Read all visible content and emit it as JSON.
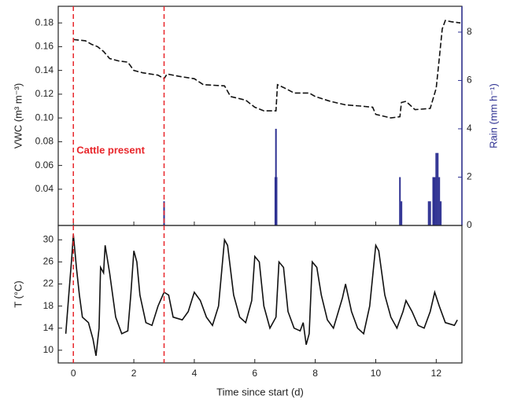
{
  "chart_data": [
    {
      "type": "line",
      "ylabel": "VWC (m³ m⁻³)",
      "y2label": "Rain (mm h⁻¹)",
      "xlim": [
        -0.5,
        12.85
      ],
      "xticks": [
        0,
        2,
        4,
        6,
        8,
        10,
        12
      ],
      "xtick_labels": false,
      "ylim": [
        0.0095,
        0.194
      ],
      "yticks": [
        0.04,
        0.06,
        0.08,
        {
          "value": 0.1,
          "label": "0.10"
        },
        0.12,
        0.14,
        0.16,
        0.18
      ],
      "y2lim": [
        0,
        9.07
      ],
      "y2ticks": [
        0,
        2,
        4,
        6,
        8
      ],
      "y2color": "#2e3192",
      "vlines": [
        0,
        3
      ],
      "vline_color": "#e8262b",
      "annotation": {
        "text": "Cattle present",
        "color": "#e8262b"
      },
      "series": [
        {
          "name": "VWC",
          "type": "line",
          "color": "#111111",
          "dash": true,
          "x": [
            0,
            0.4,
            0.6,
            0.8,
            1.0,
            1.2,
            1.5,
            1.8,
            2.0,
            2.3,
            2.8,
            3.0,
            3.1,
            3.5,
            4.0,
            4.3,
            5.0,
            5.2,
            5.7,
            6.0,
            6.3,
            6.7,
            6.75,
            7.0,
            7.3,
            7.8,
            8.0,
            8.5,
            9.0,
            9.5,
            9.9,
            10.0,
            10.5,
            10.8,
            10.85,
            11.0,
            11.3,
            11.8,
            12.0,
            12.1,
            12.2,
            12.3,
            12.5,
            12.8
          ],
          "values": [
            0.166,
            0.165,
            0.162,
            0.16,
            0.156,
            0.15,
            0.148,
            0.147,
            0.14,
            0.138,
            0.136,
            0.133,
            0.137,
            0.135,
            0.133,
            0.128,
            0.127,
            0.118,
            0.115,
            0.109,
            0.106,
            0.106,
            0.128,
            0.125,
            0.121,
            0.121,
            0.118,
            0.114,
            0.111,
            0.11,
            0.109,
            0.103,
            0.1,
            0.101,
            0.113,
            0.114,
            0.107,
            0.108,
            0.125,
            0.15,
            0.175,
            0.182,
            0.181,
            0.18
          ]
        },
        {
          "name": "Rain",
          "type": "bar",
          "axis": "y2",
          "color": "#2e3192",
          "x": [
            3.0,
            6.68,
            6.7,
            6.72,
            10.8,
            10.85,
            11.75,
            11.8,
            11.9,
            11.95,
            12.0,
            12.05,
            12.1,
            12.15
          ],
          "values": [
            1,
            2,
            4,
            2,
            2,
            1,
            1,
            1,
            2,
            2,
            3,
            3,
            2,
            1
          ]
        }
      ]
    },
    {
      "type": "line",
      "ylabel": "T (°C)",
      "xlabel": "Time since start (d)",
      "xlim": [
        -0.5,
        12.85
      ],
      "xticks": [
        0,
        2,
        4,
        6,
        8,
        10,
        12
      ],
      "xtick_labels": true,
      "ylim": [
        7.7,
        32.6
      ],
      "yticks": [
        10,
        14,
        18,
        22,
        26,
        30
      ],
      "vlines": [
        0,
        3
      ],
      "vline_color": "#e8262b",
      "series": [
        {
          "name": "T",
          "type": "line",
          "color": "#111111",
          "dash": false,
          "x": [
            -0.25,
            -0.15,
            -0.05,
            0.0,
            0.1,
            0.2,
            0.3,
            0.5,
            0.65,
            0.75,
            0.85,
            0.9,
            1.0,
            1.05,
            1.2,
            1.4,
            1.6,
            1.8,
            1.9,
            2.0,
            2.1,
            2.2,
            2.4,
            2.6,
            2.8,
            3.0,
            3.15,
            3.3,
            3.6,
            3.8,
            4.0,
            4.2,
            4.4,
            4.6,
            4.8,
            5.0,
            5.1,
            5.3,
            5.5,
            5.7,
            5.9,
            6.0,
            6.15,
            6.3,
            6.5,
            6.7,
            6.8,
            6.95,
            7.1,
            7.3,
            7.5,
            7.6,
            7.7,
            7.8,
            7.9,
            8.05,
            8.2,
            8.4,
            8.6,
            8.9,
            9.0,
            9.2,
            9.4,
            9.6,
            9.8,
            10.0,
            10.1,
            10.3,
            10.5,
            10.7,
            10.9,
            11.0,
            11.2,
            11.4,
            11.6,
            11.8,
            11.95,
            12.1,
            12.3,
            12.6,
            12.7
          ],
          "values": [
            13,
            20,
            27,
            31,
            25,
            20,
            16,
            15,
            12,
            9,
            14,
            25,
            24,
            29,
            24,
            16,
            13,
            13.5,
            20,
            28,
            26,
            20,
            15,
            14.5,
            18,
            20.5,
            20,
            16,
            15.5,
            17,
            20.5,
            19,
            16,
            14.5,
            18,
            30,
            29,
            20,
            16,
            15,
            19,
            27,
            26,
            18,
            14,
            16,
            26,
            25,
            17,
            14,
            13.5,
            15,
            11,
            13,
            26,
            25,
            20,
            15.5,
            14,
            19.5,
            22,
            17,
            14,
            13,
            18,
            29,
            28,
            20,
            16,
            14,
            17,
            19,
            17,
            14.5,
            14,
            17,
            20.5,
            18,
            15,
            14.5,
            15.5
          ]
        }
      ]
    }
  ]
}
